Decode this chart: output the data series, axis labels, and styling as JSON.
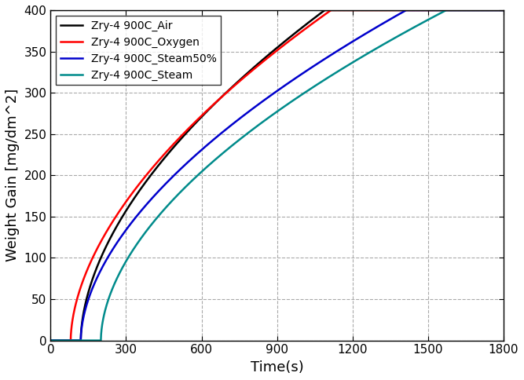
{
  "title": "",
  "xlabel": "Time(s)",
  "ylabel": "Weight Gain [mg/dm^2]",
  "xlim": [
    0,
    1800
  ],
  "ylim": [
    0,
    400
  ],
  "xticks": [
    0,
    300,
    600,
    900,
    1200,
    1500,
    1800
  ],
  "yticks": [
    0,
    50,
    100,
    150,
    200,
    250,
    300,
    350,
    400
  ],
  "series": [
    {
      "label": "Zry-4 900C_Air",
      "color": "#000000",
      "lw": 1.8,
      "t0": 120,
      "k": 8.8,
      "n": 0.555
    },
    {
      "label": "Zry-4 900C_Oxygen",
      "color": "#ff0000",
      "lw": 1.8,
      "t0": 80,
      "k": 8.2,
      "n": 0.56
    },
    {
      "label": "Zry-4 900C_Steam50%",
      "color": "#0000cc",
      "lw": 1.8,
      "t0": 120,
      "k": 7.5,
      "n": 0.555
    },
    {
      "label": "Zry-4 900C_Steam",
      "color": "#008b8b",
      "lw": 1.8,
      "t0": 200,
      "k": 7.8,
      "n": 0.545
    }
  ],
  "legend_loc": "upper left",
  "grid_color": "#aaaaaa",
  "grid_linestyle": "--",
  "background_color": "#ffffff",
  "figsize": [
    6.67,
    4.84
  ],
  "dpi": 100
}
